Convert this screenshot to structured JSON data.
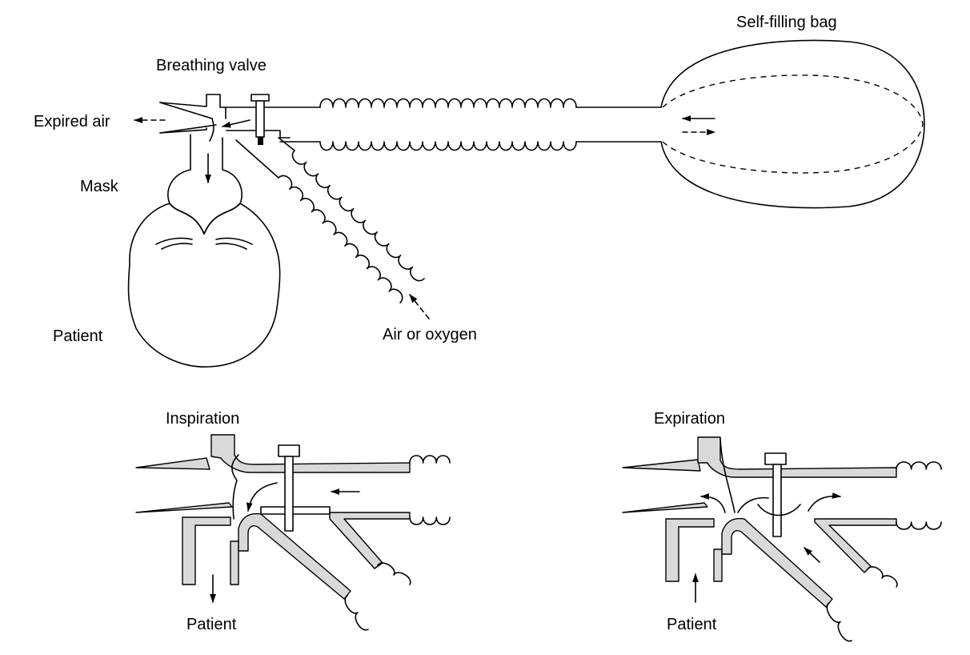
{
  "labels": {
    "self_filling_bag": "Self-filling bag",
    "breathing_valve": "Breathing valve",
    "expired_air": "Expired air",
    "mask": "Mask",
    "patient_top": "Patient",
    "air_or_oxygen": "Air or oxygen",
    "inspiration": "Inspiration",
    "expiration": "Expiration",
    "patient_inspiration": "Patient",
    "patient_expiration": "Patient"
  },
  "colors": {
    "wall_fill": "#d9d9d9",
    "line": "#000000",
    "background": "#ffffff"
  }
}
